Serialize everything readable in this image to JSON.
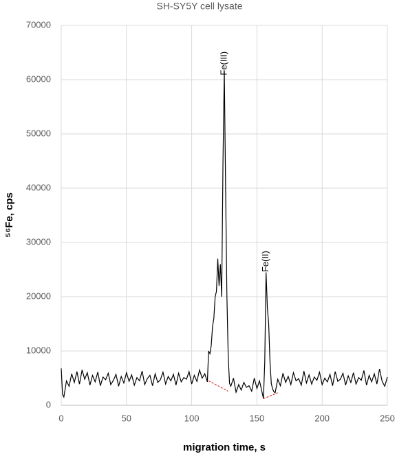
{
  "chart_data": {
    "type": "line",
    "title": "SH-SY5Y cell lysate",
    "xlabel": "migration time, s",
    "ylabel": "⁵⁶Fe, cps",
    "xlim": [
      0,
      250
    ],
    "xticks": [
      0,
      50,
      100,
      150,
      200,
      250
    ],
    "ylim": [
      0,
      70000
    ],
    "yticks": [
      0,
      10000,
      20000,
      30000,
      40000,
      50000,
      60000,
      70000
    ],
    "grid": true,
    "series": [
      {
        "color": "#000000",
        "x": [
          0,
          1,
          2,
          3,
          4,
          6,
          8,
          10,
          12,
          14,
          16,
          18,
          20,
          22,
          24,
          26,
          28,
          30,
          32,
          34,
          36,
          38,
          40,
          42,
          44,
          46,
          48,
          50,
          52,
          54,
          56,
          58,
          60,
          62,
          64,
          66,
          68,
          70,
          72,
          74,
          76,
          78,
          80,
          82,
          84,
          86,
          88,
          90,
          92,
          94,
          96,
          98,
          100,
          102,
          104,
          106,
          108,
          110,
          112,
          113,
          114,
          115,
          116,
          117,
          118,
          119,
          120,
          121,
          122,
          123,
          124,
          125,
          126,
          127,
          128,
          129,
          130,
          132,
          134,
          136,
          138,
          140,
          142,
          144,
          146,
          148,
          150,
          152,
          154,
          155,
          156,
          157,
          158,
          159,
          160,
          161,
          162,
          163,
          164,
          166,
          168,
          170,
          172,
          174,
          176,
          178,
          180,
          182,
          184,
          186,
          188,
          190,
          192,
          194,
          196,
          198,
          200,
          202,
          204,
          206,
          208,
          210,
          212,
          214,
          216,
          218,
          220,
          222,
          224,
          226,
          228,
          230,
          232,
          234,
          236,
          238,
          240,
          242,
          244,
          246,
          248,
          250
        ],
        "values": [
          6800,
          2000,
          1500,
          3000,
          4500,
          3500,
          5800,
          4200,
          6200,
          3900,
          6500,
          4800,
          6000,
          3700,
          5500,
          4300,
          6100,
          3600,
          5200,
          4700,
          5900,
          3800,
          4600,
          5700,
          3500,
          5300,
          4100,
          6000,
          4400,
          5600,
          3700,
          5100,
          4500,
          6300,
          3800,
          4900,
          5500,
          3600,
          5800,
          4200,
          4700,
          6100,
          3900,
          5300,
          4500,
          5700,
          3700,
          5900,
          4300,
          5100,
          4800,
          6200,
          3900,
          5500,
          4400,
          6500,
          5000,
          5800,
          4300,
          10000,
          9500,
          11000,
          14500,
          16000,
          20000,
          21000,
          27000,
          22000,
          26000,
          20000,
          45000,
          61700,
          40000,
          20000,
          9000,
          4000,
          3500,
          5000,
          2400,
          3800,
          2800,
          4200,
          3300,
          3600,
          2600,
          5000,
          3100,
          4500,
          2300,
          1200,
          8000,
          24500,
          18000,
          15000,
          8000,
          4000,
          3000,
          2500,
          2300,
          4800,
          3600,
          5900,
          4200,
          5300,
          3800,
          6000,
          4500,
          4900,
          3700,
          6300,
          4100,
          5600,
          3900,
          5200,
          4600,
          6100,
          3800,
          5000,
          4300,
          5700,
          3600,
          6200,
          4400,
          4800,
          5900,
          3700,
          5400,
          4200,
          6000,
          3900,
          5100,
          4600,
          6400,
          3700,
          5500,
          4300,
          5800,
          3900,
          6700,
          4400,
          3500,
          5200
        ]
      },
      {
        "color": "#e03030",
        "x": [
          113,
          128
        ],
        "values": [
          4500,
          2600
        ]
      },
      {
        "color": "#e03030",
        "x": [
          155,
          166
        ],
        "values": [
          1200,
          2300
        ]
      }
    ],
    "annotations": [
      {
        "text": "Fe(III)",
        "x": 125,
        "y": 63000
      },
      {
        "text": "Fe(II)",
        "x": 157,
        "y": 26500
      }
    ]
  }
}
